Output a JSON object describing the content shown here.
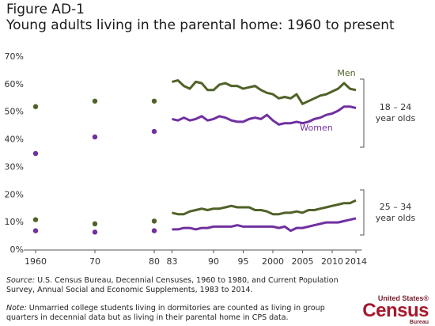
{
  "chart_data": {
    "type": "line",
    "figure_label": "Figure AD-1",
    "title": "Young adults living in the parental home: 1960 to present",
    "x": [
      1960,
      1970,
      1980,
      1983,
      1984,
      1985,
      1986,
      1987,
      1988,
      1989,
      1990,
      1991,
      1992,
      1993,
      1994,
      1995,
      1996,
      1997,
      1998,
      1999,
      2000,
      2001,
      2002,
      2003,
      2004,
      2005,
      2006,
      2007,
      2008,
      2009,
      2010,
      2011,
      2012,
      2013,
      2014
    ],
    "xlim": [
      1958,
      2015
    ],
    "xticks": [
      1960,
      {
        "value": 1970,
        "label": "70"
      },
      {
        "value": 1980,
        "label": "80"
      },
      {
        "value": 1983,
        "label": "83"
      },
      {
        "value": 1990,
        "label": "90"
      },
      {
        "value": 1995,
        "label": "95"
      },
      2000,
      2005,
      2010,
      2014
    ],
    "ylim": [
      0,
      70
    ],
    "yticks": [
      {
        "value": 0,
        "label": "0%"
      },
      {
        "value": 10,
        "label": "10%"
      },
      {
        "value": 20,
        "label": "20%"
      },
      {
        "value": 30,
        "label": "30%"
      },
      {
        "value": 40,
        "label": "40%"
      },
      {
        "value": 50,
        "label": "50%"
      },
      {
        "value": 60,
        "label": "60%"
      },
      {
        "value": 70,
        "label": "70%"
      }
    ],
    "series": [
      {
        "name": "Men",
        "color": "#4f6228",
        "values": [
          52,
          54,
          54,
          61,
          61.5,
          59.5,
          58.5,
          61,
          60.5,
          58,
          58,
          60,
          60.5,
          59.5,
          59.5,
          58.5,
          59,
          59.5,
          58,
          57,
          56.5,
          55,
          55.5,
          55,
          56.5,
          53,
          54,
          55,
          56,
          56.5,
          57.5,
          58.5,
          60.5,
          58.5,
          58
        ]
      },
      {
        "name": "Women",
        "color": "#7030a0",
        "values": [
          35,
          41,
          43,
          47.5,
          47,
          48,
          47,
          47.5,
          48.5,
          47,
          47.5,
          48.5,
          48,
          47,
          46.5,
          46.5,
          47.5,
          48,
          47.5,
          49,
          47,
          45.5,
          46,
          46,
          46.5,
          46,
          46.5,
          47.5,
          48,
          49,
          49.5,
          50.5,
          52,
          52,
          51.5
        ]
      },
      {
        "color": "#4f6228",
        "values": [
          11,
          9.5,
          10.5,
          13.5,
          13,
          13,
          14,
          14.5,
          15,
          14.5,
          15,
          15,
          15.5,
          16,
          15.5,
          15.5,
          15.5,
          14.5,
          14.5,
          14,
          13,
          13,
          13.5,
          13.5,
          14,
          13.5,
          14.5,
          14.5,
          15,
          15.5,
          16,
          16.5,
          17,
          17,
          18
        ]
      },
      {
        "color": "#7030a0",
        "values": [
          7,
          6.5,
          7,
          7.5,
          7.5,
          8,
          8,
          7.5,
          8,
          8,
          8.5,
          8.5,
          8.5,
          8.5,
          9,
          8.5,
          8.5,
          8.5,
          8.5,
          8.5,
          8.5,
          8,
          8.5,
          7,
          8,
          8,
          8.5,
          9,
          9.5,
          10,
          10,
          10,
          10.5,
          11,
          11.5
        ]
      }
    ],
    "groups": [
      {
        "label": [
          "18 – 24",
          "year olds"
        ]
      },
      {
        "label": [
          "25 – 34",
          "year olds"
        ]
      }
    ],
    "source_label": "Source:",
    "source": "U.S. Census Bureau, Decennial Censuses, 1960 to 1980, and Current Population Survey, Annual Social and Economic Supplements, 1983 to 2014.",
    "note_label": "Note:",
    "note": "Unmarried college students living in dormitories are counted as living in group quarters in decennial data but as living in their parental home in CPS data.",
    "logo": [
      "United States®",
      "Census",
      "Bureau"
    ]
  }
}
